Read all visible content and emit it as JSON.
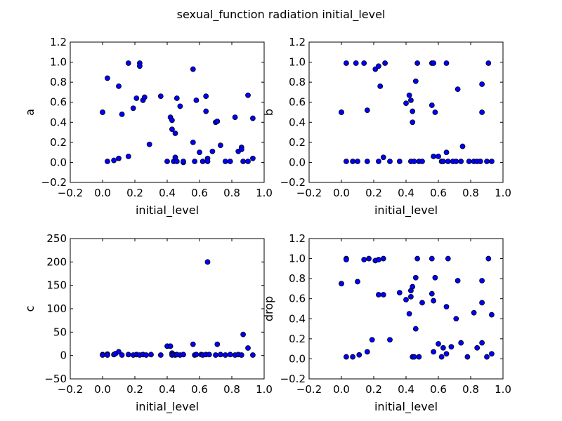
{
  "figure": {
    "title": "sexual_function radiation initial_level",
    "marker_color": "#0000ff",
    "marker_edge": "#000000"
  },
  "chart_data": [
    {
      "type": "scatter",
      "xlabel": "initial_level",
      "ylabel": "a",
      "xlim": [
        -0.2,
        1.0
      ],
      "ylim": [
        -0.2,
        1.2
      ],
      "xticks": [
        "−0.2",
        "0.0",
        "0.2",
        "0.4",
        "0.6",
        "0.8",
        "1.0"
      ],
      "yticks": [
        "−0.2",
        "0.0",
        "0.2",
        "0.4",
        "0.6",
        "0.8",
        "1.0",
        "1.2"
      ],
      "x": [
        0.0,
        0.0,
        0.03,
        0.03,
        0.07,
        0.1,
        0.1,
        0.12,
        0.16,
        0.16,
        0.19,
        0.21,
        0.23,
        0.23,
        0.25,
        0.26,
        0.29,
        0.36,
        0.4,
        0.42,
        0.43,
        0.43,
        0.44,
        0.45,
        0.45,
        0.46,
        0.46,
        0.48,
        0.5,
        0.5,
        0.56,
        0.56,
        0.57,
        0.58,
        0.6,
        0.62,
        0.64,
        0.64,
        0.65,
        0.65,
        0.68,
        0.7,
        0.71,
        0.73,
        0.76,
        0.79,
        0.82,
        0.84,
        0.86,
        0.86,
        0.87,
        0.9,
        0.9,
        0.93,
        0.93
      ],
      "y": [
        0.5,
        0.5,
        0.84,
        0.01,
        0.02,
        0.76,
        0.04,
        0.48,
        0.06,
        0.99,
        0.54,
        0.64,
        0.99,
        0.96,
        0.62,
        0.65,
        0.18,
        0.66,
        0.01,
        0.45,
        0.42,
        0.33,
        0.01,
        0.05,
        0.29,
        0.64,
        0.01,
        0.56,
        0.0,
        0.01,
        0.93,
        0.2,
        0.01,
        0.62,
        0.1,
        0.01,
        0.66,
        0.51,
        0.04,
        0.01,
        0.11,
        0.4,
        0.41,
        0.17,
        0.01,
        0.01,
        0.45,
        0.11,
        0.15,
        0.13,
        0.01,
        0.67,
        0.01,
        0.44,
        0.04
      ]
    },
    {
      "type": "scatter",
      "xlabel": "initial_level",
      "ylabel": "b",
      "xlim": [
        -0.2,
        1.0
      ],
      "ylim": [
        -0.2,
        1.2
      ],
      "xticks": [
        "−0.2",
        "0.0",
        "0.2",
        "0.4",
        "0.6",
        "0.8",
        "1.0"
      ],
      "yticks": [
        "−0.2",
        "0.0",
        "0.2",
        "0.4",
        "0.6",
        "0.8",
        "1.0",
        "1.2"
      ],
      "x": [
        0.0,
        0.0,
        0.03,
        0.03,
        0.07,
        0.09,
        0.1,
        0.14,
        0.16,
        0.16,
        0.21,
        0.23,
        0.23,
        0.24,
        0.26,
        0.27,
        0.3,
        0.36,
        0.4,
        0.42,
        0.43,
        0.43,
        0.44,
        0.44,
        0.45,
        0.46,
        0.47,
        0.48,
        0.5,
        0.56,
        0.56,
        0.57,
        0.57,
        0.58,
        0.6,
        0.62,
        0.63,
        0.65,
        0.65,
        0.66,
        0.69,
        0.71,
        0.72,
        0.74,
        0.75,
        0.79,
        0.82,
        0.84,
        0.86,
        0.87,
        0.87,
        0.9,
        0.91,
        0.93
      ],
      "y": [
        0.5,
        0.5,
        0.01,
        0.99,
        0.01,
        0.99,
        0.01,
        0.99,
        0.52,
        0.01,
        0.93,
        0.96,
        0.01,
        0.76,
        0.05,
        0.99,
        0.01,
        0.01,
        0.59,
        0.67,
        0.62,
        0.01,
        0.51,
        0.4,
        0.01,
        0.81,
        0.99,
        0.01,
        0.01,
        0.99,
        0.57,
        0.06,
        0.99,
        0.5,
        0.06,
        0.01,
        0.01,
        0.99,
        0.1,
        0.01,
        0.01,
        0.01,
        0.73,
        0.01,
        0.16,
        0.01,
        0.01,
        0.01,
        0.01,
        0.78,
        0.5,
        0.01,
        0.99,
        0.01
      ]
    },
    {
      "type": "scatter",
      "xlabel": "initial_level",
      "ylabel": "c",
      "xlim": [
        -0.2,
        1.0
      ],
      "ylim": [
        -50,
        250
      ],
      "xticks": [
        "−0.2",
        "0.0",
        "0.2",
        "0.4",
        "0.6",
        "0.8",
        "1.0"
      ],
      "yticks": [
        "−50",
        "0",
        "50",
        "100",
        "150",
        "200",
        "250"
      ],
      "x": [
        0.0,
        0.0,
        0.03,
        0.03,
        0.07,
        0.08,
        0.1,
        0.12,
        0.16,
        0.19,
        0.21,
        0.23,
        0.25,
        0.27,
        0.3,
        0.36,
        0.4,
        0.42,
        0.43,
        0.43,
        0.44,
        0.45,
        0.46,
        0.48,
        0.5,
        0.56,
        0.57,
        0.58,
        0.61,
        0.62,
        0.64,
        0.65,
        0.66,
        0.7,
        0.71,
        0.73,
        0.76,
        0.79,
        0.82,
        0.84,
        0.86,
        0.87,
        0.9,
        0.93
      ],
      "y": [
        2,
        1,
        3,
        1,
        2,
        4,
        8,
        1,
        2,
        1,
        2,
        1,
        2,
        1,
        2,
        1,
        20,
        20,
        5,
        1,
        2,
        1,
        2,
        1,
        2,
        24,
        1,
        2,
        2,
        1,
        2,
        200,
        2,
        1,
        24,
        2,
        1,
        2,
        1,
        2,
        1,
        45,
        16,
        1
      ]
    },
    {
      "type": "scatter",
      "xlabel": "initial_level",
      "ylabel": "drop",
      "xlim": [
        -0.2,
        1.0
      ],
      "ylim": [
        -0.2,
        1.2
      ],
      "xticks": [
        "−0.2",
        "0.0",
        "0.2",
        "0.4",
        "0.6",
        "0.8",
        "1.0"
      ],
      "yticks": [
        "−0.2",
        "0.0",
        "0.2",
        "0.4",
        "0.6",
        "0.8",
        "1.0",
        "1.2"
      ],
      "x": [
        0.0,
        0.0,
        0.03,
        0.03,
        0.03,
        0.07,
        0.1,
        0.11,
        0.14,
        0.16,
        0.17,
        0.19,
        0.21,
        0.23,
        0.23,
        0.26,
        0.26,
        0.3,
        0.36,
        0.4,
        0.42,
        0.43,
        0.43,
        0.44,
        0.44,
        0.45,
        0.46,
        0.46,
        0.47,
        0.48,
        0.5,
        0.56,
        0.56,
        0.57,
        0.57,
        0.58,
        0.6,
        0.62,
        0.63,
        0.65,
        0.65,
        0.66,
        0.68,
        0.71,
        0.72,
        0.74,
        0.78,
        0.82,
        0.84,
        0.87,
        0.87,
        0.87,
        0.9,
        0.91,
        0.93,
        0.93
      ],
      "y": [
        0.75,
        0.75,
        1.0,
        0.99,
        0.02,
        0.02,
        0.77,
        0.04,
        0.99,
        0.07,
        1.0,
        0.19,
        0.98,
        0.64,
        0.99,
        1.0,
        0.64,
        0.19,
        0.66,
        0.59,
        0.45,
        0.68,
        0.62,
        0.02,
        0.72,
        0.02,
        0.81,
        0.3,
        1.0,
        0.02,
        0.56,
        1.0,
        0.65,
        0.58,
        0.07,
        0.81,
        0.15,
        0.02,
        0.11,
        0.52,
        0.05,
        1.0,
        0.12,
        0.4,
        0.78,
        0.16,
        0.02,
        0.46,
        0.11,
        0.78,
        0.56,
        0.16,
        0.02,
        1.0,
        0.44,
        0.05
      ]
    }
  ]
}
